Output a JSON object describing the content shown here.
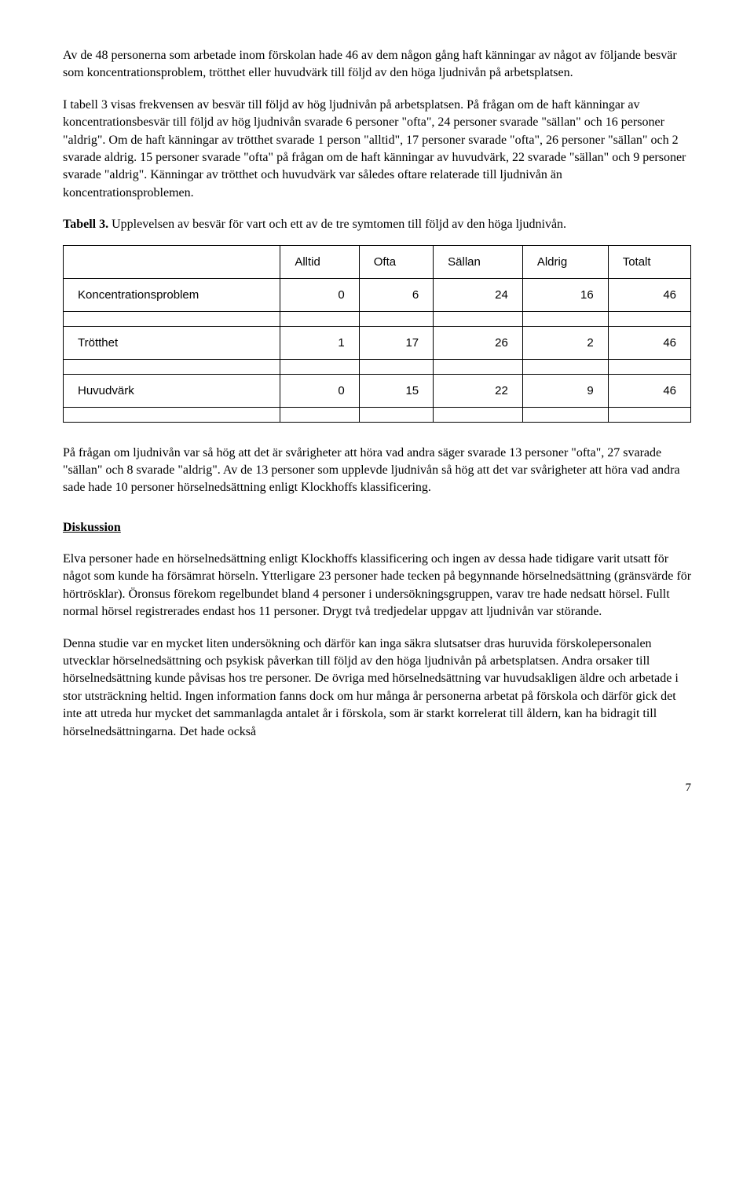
{
  "paragraphs": {
    "p1": "Av de 48 personerna som arbetade inom förskolan hade 46 av dem någon gång haft känningar av något av följande besvär som koncentrationsproblem, trötthet eller huvudvärk till följd av den höga ljudnivån på arbetsplatsen.",
    "p2": "I tabell 3 visas frekvensen av besvär till följd av hög ljudnivån på arbetsplatsen. På frågan om de haft känningar av koncentrationsbesvär till följd av hög ljudnivån svarade 6 personer \"ofta\", 24 personer svarade \"sällan\" och 16 personer \"aldrig\". Om de haft känningar av trötthet svarade 1 person \"alltid\", 17 personer svarade \"ofta\", 26 personer \"sällan\" och 2 svarade aldrig. 15 personer svarade \"ofta\" på frågan om de haft känningar av huvudvärk, 22 svarade \"sällan\" och 9 personer svarade \"aldrig\". Känningar av trötthet och huvudvärk var således oftare relaterade till ljudnivån än koncentrationsproblemen.",
    "p3": "På frågan om ljudnivån var så hög att det är svårigheter att höra vad andra säger svarade 13 personer \"ofta\", 27 svarade \"sällan\" och 8 svarade \"aldrig\". Av de 13 personer som upplevde ljudnivån så hög att det var svårigheter att höra vad andra sade hade 10 personer hörselnedsättning enligt Klockhoffs klassificering.",
    "p4": "Elva personer hade en hörselnedsättning enligt Klockhoffs klassificering och ingen av dessa hade tidigare varit utsatt för något som kunde ha försämrat hörseln. Ytterligare 23 personer hade tecken på begynnande hörselnedsättning (gränsvärde för hörtrösklar). Öronsus förekom regelbundet bland 4 personer i undersökningsgruppen, varav tre hade nedsatt hörsel. Fullt normal hörsel registrerades endast hos 11 personer. Drygt två tredjedelar uppgav att ljudnivån var störande.",
    "p5": "Denna studie var en mycket liten undersökning och därför kan inga säkra slutsatser dras huruvida förskolepersonalen utvecklar hörselnedsättning och psykisk påverkan till följd av den höga ljudnivån på arbetsplatsen. Andra orsaker till hörselnedsättning kunde påvisas hos tre personer. De övriga med hörselnedsättning var huvudsakligen äldre och arbetade i stor utsträckning heltid. Ingen information fanns dock om hur många år personerna arbetat på förskola och därför gick det inte att utreda hur mycket det sammanlagda antalet år i förskola, som är starkt korrelerat till åldern, kan ha bidragit till hörselnedsättningarna. Det hade också"
  },
  "table_caption": {
    "label": "Tabell 3.",
    "text": " Upplevelsen av besvär för vart och ett av de tre symtomen till följd av den höga ljudnivån."
  },
  "table": {
    "columns": [
      "",
      "Alltid",
      "Ofta",
      "Sällan",
      "Aldrig",
      "Totalt"
    ],
    "rows": [
      {
        "label": "Koncentrationsproblem",
        "values": [
          "0",
          "6",
          "24",
          "16",
          "46"
        ]
      },
      {
        "label": "Trötthet",
        "values": [
          "1",
          "17",
          "26",
          "2",
          "46"
        ]
      },
      {
        "label": "Huvudvärk",
        "values": [
          "0",
          "15",
          "22",
          "9",
          "46"
        ]
      }
    ]
  },
  "section_heading": "Diskussion",
  "page_number": "7"
}
